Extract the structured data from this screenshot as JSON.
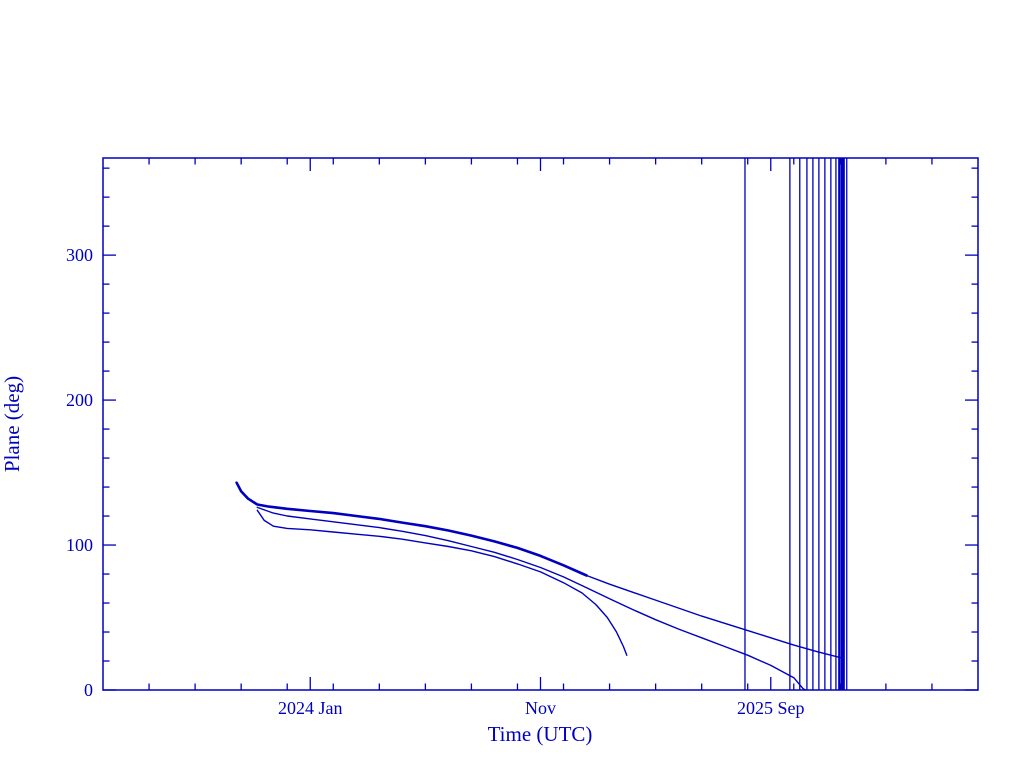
{
  "chart_data": {
    "type": "line",
    "title": "",
    "xlabel": "Time (UTC)",
    "ylabel": "Plane (deg)",
    "x_unit": "months since 2023-04",
    "xlim": [
      0,
      38
    ],
    "ylim": [
      0,
      367
    ],
    "grid": false,
    "legend": "none",
    "axis_color": "#0000c0",
    "line_color": "#0000c0",
    "x_ticks": [
      {
        "pos": 9,
        "label": "2024 Jan"
      },
      {
        "pos": 19,
        "label": "Nov"
      },
      {
        "pos": 29,
        "label": "2025 Sep"
      }
    ],
    "x_minor_step": 2,
    "y_ticks": [
      {
        "pos": 0,
        "label": "0"
      },
      {
        "pos": 100,
        "label": "100"
      },
      {
        "pos": 200,
        "label": "200"
      },
      {
        "pos": 300,
        "label": "300"
      }
    ],
    "y_minor_step": 20,
    "series": [
      {
        "name": "plane-angle-bundle-thick",
        "width": 2.6,
        "points": [
          [
            5.8,
            143
          ],
          [
            6.0,
            137
          ],
          [
            6.3,
            132
          ],
          [
            6.7,
            128
          ],
          [
            7.2,
            126.5
          ],
          [
            8,
            125
          ],
          [
            9,
            123.5
          ],
          [
            10,
            122
          ],
          [
            11,
            120
          ],
          [
            12,
            118
          ],
          [
            13,
            115.5
          ],
          [
            14,
            113
          ],
          [
            15,
            110
          ],
          [
            16,
            106.5
          ],
          [
            17,
            102.5
          ],
          [
            18,
            98
          ],
          [
            19,
            92.5
          ],
          [
            20,
            86
          ],
          [
            21,
            79
          ]
        ]
      },
      {
        "name": "plane-angle-tail",
        "width": 1.4,
        "points": [
          [
            21,
            79
          ],
          [
            22,
            73
          ],
          [
            23,
            67.5
          ],
          [
            24,
            62
          ],
          [
            25,
            56.5
          ],
          [
            26,
            51
          ],
          [
            27,
            46
          ],
          [
            27.9,
            41.5
          ],
          [
            29,
            36
          ],
          [
            30,
            31
          ],
          [
            31,
            26.5
          ],
          [
            32.1,
            22
          ]
        ]
      },
      {
        "name": "plane-angle-low-branch",
        "width": 1.4,
        "points": [
          [
            6.7,
            124
          ],
          [
            7.0,
            117
          ],
          [
            7.4,
            113
          ],
          [
            8,
            111.5
          ],
          [
            9,
            110.5
          ],
          [
            10,
            109
          ],
          [
            11,
            107.5
          ],
          [
            12,
            106
          ],
          [
            13,
            104
          ],
          [
            14,
            101.5
          ],
          [
            15,
            99
          ],
          [
            16,
            96
          ],
          [
            17,
            92
          ],
          [
            18,
            87
          ],
          [
            19,
            81.5
          ],
          [
            20,
            74
          ],
          [
            20.8,
            67
          ],
          [
            21.4,
            59
          ],
          [
            21.9,
            50
          ],
          [
            22.3,
            40
          ],
          [
            22.6,
            30
          ],
          [
            22.75,
            24
          ]
        ]
      },
      {
        "name": "plane-angle-mid-branch",
        "width": 1.4,
        "points": [
          [
            6.7,
            126
          ],
          [
            7.4,
            122
          ],
          [
            8,
            120
          ],
          [
            9,
            118
          ],
          [
            10,
            116
          ],
          [
            11,
            114
          ],
          [
            12,
            112
          ],
          [
            13,
            109.5
          ],
          [
            14,
            106.5
          ],
          [
            15,
            103
          ],
          [
            16,
            99
          ],
          [
            17,
            95
          ],
          [
            18,
            90
          ],
          [
            19,
            84.5
          ],
          [
            20,
            78
          ],
          [
            21,
            70.5
          ],
          [
            22,
            63
          ],
          [
            23,
            55.5
          ],
          [
            24,
            48.5
          ],
          [
            25,
            42
          ],
          [
            26,
            36
          ],
          [
            27,
            30
          ],
          [
            28,
            24
          ],
          [
            29,
            17
          ],
          [
            30,
            8.5
          ],
          [
            30.4,
            1
          ],
          [
            30.5,
            0
          ]
        ]
      }
    ],
    "wrap_vertical_lines": [
      {
        "x": 27.88,
        "w": 1.3
      },
      {
        "x": 29.83,
        "w": 1.3
      },
      {
        "x": 30.26,
        "w": 1.3
      },
      {
        "x": 30.57,
        "w": 1.3
      },
      {
        "x": 30.83,
        "w": 1.3
      },
      {
        "x": 31.09,
        "w": 1.3
      },
      {
        "x": 31.35,
        "w": 1.3
      },
      {
        "x": 31.61,
        "w": 1.3
      },
      {
        "x": 31.83,
        "w": 1.3
      },
      {
        "x": 31.97,
        "w": 2
      },
      {
        "x": 32.12,
        "w": 4.5
      },
      {
        "x": 32.3,
        "w": 1.3
      }
    ]
  }
}
